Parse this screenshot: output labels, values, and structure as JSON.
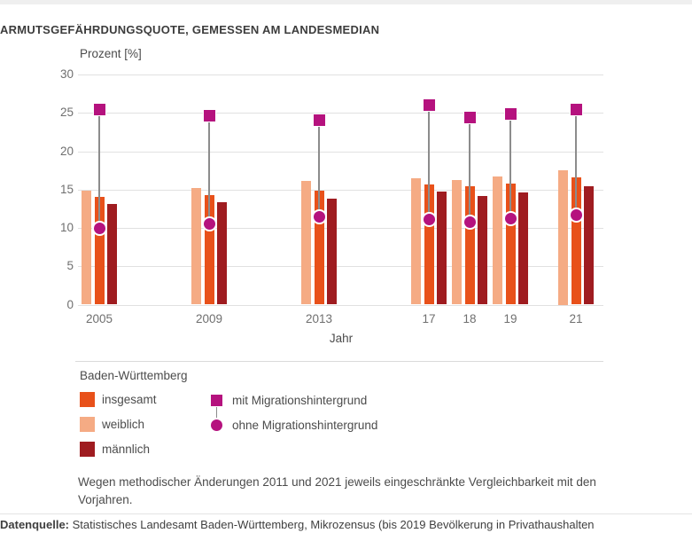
{
  "page": {
    "title": "ARMUTSGEFÄHRDUNGSQUOTE, GEMESSEN AM LANDESMEDIAN",
    "note": "Wegen methodischer Änderungen 2011 und 2021 jeweils eingeschränkte Vergleichbarkeit mit den Vorjahren.",
    "source_label": "Datenquelle:",
    "source_text": " Statistisches Landesamt Baden-Württemberg, Mikrozensus (bis 2019 Bevölkerung in Privathaushalten"
  },
  "chart_data": {
    "type": "bar",
    "title": "ARMUTSGEFÄHRDUNGSQUOTE, GEMESSEN AM LANDESMEDIAN",
    "ylabel": "Prozent [%]",
    "xlabel": "Jahr",
    "ylim": [
      0,
      30
    ],
    "yticks": [
      0,
      5,
      10,
      15,
      20,
      25,
      30
    ],
    "grid": true,
    "categories": [
      "2005",
      "2009",
      "2013",
      "17",
      "18",
      "19",
      "21"
    ],
    "series": [
      {
        "name": "insgesamt",
        "type": "bar",
        "color": "#e8511a",
        "values": [
          14.0,
          14.3,
          14.9,
          15.7,
          15.4,
          15.8,
          16.6
        ]
      },
      {
        "name": "weiblich",
        "type": "bar",
        "color": "#f5ab84",
        "values": [
          14.8,
          15.2,
          16.1,
          16.5,
          16.3,
          16.7,
          17.5
        ]
      },
      {
        "name": "männlich",
        "type": "bar",
        "color": "#9f1c20",
        "values": [
          13.1,
          13.3,
          13.8,
          14.7,
          14.2,
          14.6,
          15.4
        ]
      },
      {
        "name": "mit Migrationshintergrund",
        "type": "square-marker",
        "color": "#b5127e",
        "values": [
          25.4,
          24.6,
          24.1,
          26.0,
          24.4,
          24.8,
          25.4
        ]
      },
      {
        "name": "ohne Migrationshintergrund",
        "type": "circle-marker",
        "color": "#b5127e",
        "values": [
          10.0,
          10.5,
          11.4,
          11.1,
          10.8,
          11.2,
          11.7
        ]
      }
    ],
    "bar_order": [
      "weiblich",
      "insgesamt",
      "männlich"
    ],
    "legend_position": "bottom-left"
  },
  "legend": {
    "title": "Baden-Württemberg",
    "bar_items": [
      {
        "label": "insgesamt",
        "color": "#e8511a"
      },
      {
        "label": "weiblich",
        "color": "#f5ab84"
      },
      {
        "label": "männlich",
        "color": "#9f1c20"
      }
    ],
    "marker_items": [
      {
        "label": "mit Migrationshintergrund",
        "icon": "square-marker-icon",
        "color": "#b5127e"
      },
      {
        "label": "ohne Migrationshintergrund",
        "icon": "circle-marker-icon",
        "color": "#b5127e"
      }
    ]
  }
}
